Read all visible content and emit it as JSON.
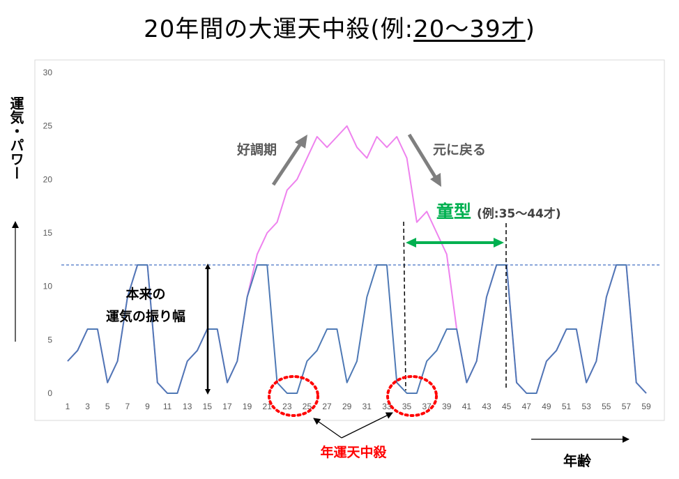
{
  "title": {
    "main": "20年間の大運天中殺(例:",
    "range": "20〜39才",
    "close": ")"
  },
  "axes": {
    "ylabel": "運気・パワー",
    "xlabel": "年齢"
  },
  "annotations": {
    "good_period": "好調期",
    "return": "元に戻る",
    "douke": "童型",
    "douke_example": "(例:35〜44才)",
    "amplitude": "本来の\n運気の振り幅",
    "nen_tenchusatsu": "年運天中殺"
  },
  "colors": {
    "base": "#4e79b5",
    "boost": "#ee82ee",
    "dashed": "#4472c4",
    "arrow_gray": "#7f7f7f",
    "green": "#00b050",
    "red": "#ff0000"
  },
  "chart_data": {
    "type": "line",
    "x": [
      1,
      2,
      3,
      4,
      5,
      6,
      7,
      8,
      9,
      10,
      11,
      12,
      13,
      14,
      15,
      16,
      17,
      18,
      19,
      20,
      21,
      22,
      23,
      24,
      25,
      26,
      27,
      28,
      29,
      30,
      31,
      32,
      33,
      34,
      35,
      36,
      37,
      38,
      39,
      40,
      41,
      42,
      43,
      44,
      45,
      46,
      47,
      48,
      49,
      50,
      51,
      52,
      53,
      54,
      55,
      56,
      57,
      58,
      59
    ],
    "x_ticks": [
      1,
      3,
      5,
      7,
      9,
      11,
      13,
      15,
      17,
      19,
      21,
      23,
      25,
      27,
      29,
      31,
      33,
      35,
      37,
      39,
      41,
      43,
      45,
      47,
      49,
      51,
      53,
      55,
      57,
      59
    ],
    "ylim": [
      0,
      30
    ],
    "y_ticks": [
      0,
      5,
      10,
      15,
      20,
      25,
      30
    ],
    "reference_line": 12,
    "series": [
      {
        "values": [
          3,
          4,
          6,
          6,
          1,
          3,
          9,
          12,
          12,
          1,
          0,
          0,
          3,
          4,
          6,
          6,
          1,
          3,
          9,
          12,
          12,
          1,
          0,
          0,
          3,
          4,
          6,
          6,
          1,
          3,
          9,
          12,
          12,
          1,
          0,
          0,
          3,
          4,
          6,
          6,
          1,
          3,
          9,
          12,
          12,
          1,
          0,
          0,
          3,
          4,
          6,
          6,
          1,
          3,
          9,
          12,
          12,
          1,
          0
        ]
      },
      {
        "values": [
          3,
          4,
          6,
          6,
          1,
          3,
          9,
          12,
          12,
          1,
          0,
          0,
          3,
          4,
          6,
          6,
          1,
          3,
          9,
          13,
          15,
          16,
          19,
          20,
          22,
          24,
          23,
          24,
          25,
          23,
          22,
          24,
          23,
          24,
          22,
          16,
          17,
          15,
          13,
          6,
          1,
          3,
          9,
          12,
          12,
          1,
          0,
          0,
          3,
          4,
          6,
          6,
          1,
          3,
          9,
          12,
          12,
          1,
          0
        ]
      }
    ]
  }
}
